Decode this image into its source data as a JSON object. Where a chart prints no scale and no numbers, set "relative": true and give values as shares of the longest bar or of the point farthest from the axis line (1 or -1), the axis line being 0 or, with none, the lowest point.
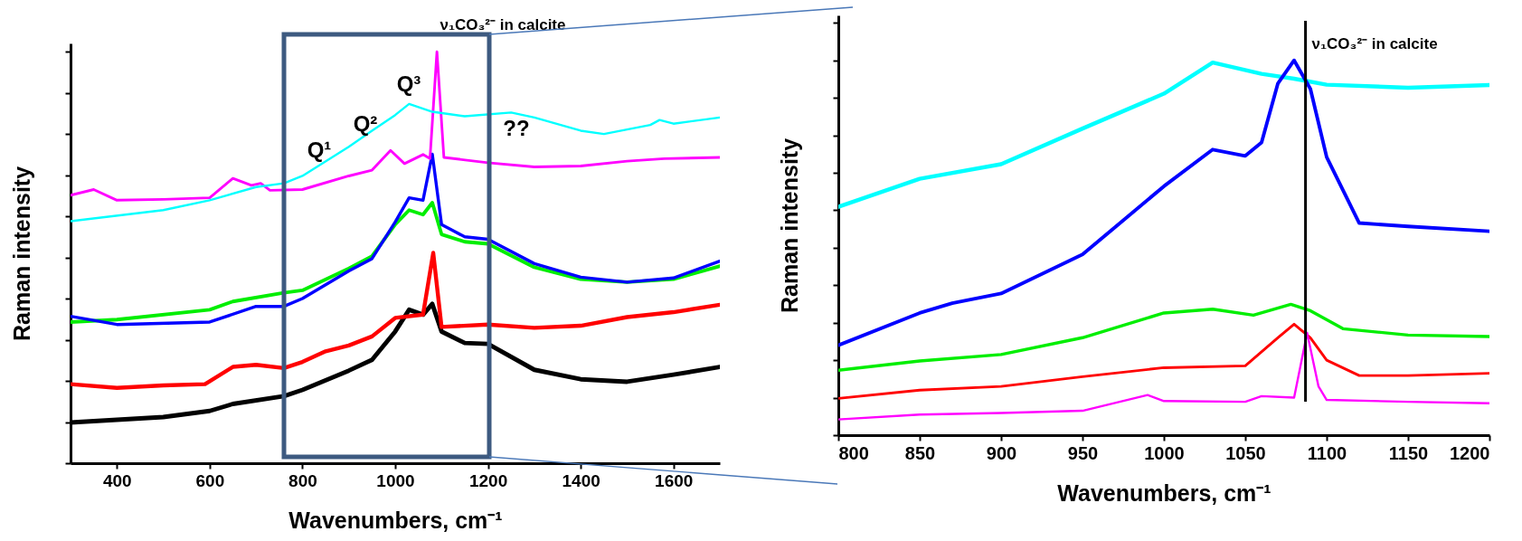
{
  "chart_data": [
    {
      "type": "line",
      "xlabel": "Wavenumbers, cm⁻¹",
      "ylabel": "Raman intensity",
      "xlim": [
        300,
        1700
      ],
      "xticks": [
        400,
        600,
        800,
        {
          "value": 1000,
          "label": "1000"
        },
        {
          "value": 1200,
          "label": "1200"
        },
        {
          "value": 1400,
          "label": "1400"
        },
        {
          "value": 1600,
          "label": "1600"
        }
      ],
      "relative": true,
      "series": [
        {
          "color": "#000000",
          "x": [
            300,
            500,
            600,
            650,
            760,
            800,
            900,
            950,
            1000,
            1030,
            1060,
            1080,
            1100,
            1150,
            1200,
            1300,
            1400,
            1500,
            1600,
            1700
          ],
          "values": [
            0.099,
            0.112,
            0.127,
            0.144,
            0.163,
            0.178,
            0.225,
            0.251,
            0.32,
            0.373,
            0.361,
            0.387,
            0.32,
            0.292,
            0.29,
            0.227,
            0.204,
            0.198,
            0.215,
            0.234
          ]
        },
        {
          "color": "#ff0000",
          "x": [
            300,
            400,
            500,
            590,
            650,
            700,
            760,
            800,
            850,
            900,
            950,
            1000,
            1060,
            1082,
            1100,
            1200,
            1300,
            1400,
            1500,
            1600,
            1700
          ],
          "values": [
            0.192,
            0.183,
            0.189,
            0.192,
            0.234,
            0.239,
            0.231,
            0.246,
            0.272,
            0.286,
            0.308,
            0.353,
            0.361,
            0.511,
            0.331,
            0.337,
            0.329,
            0.334,
            0.355,
            0.367,
            0.385
          ]
        },
        {
          "color": "#00ee00",
          "x": [
            300,
            400,
            600,
            650,
            760,
            800,
            900,
            950,
            1000,
            1030,
            1060,
            1080,
            1100,
            1150,
            1200,
            1300,
            1400,
            1500,
            1600,
            1700
          ],
          "values": [
            0.343,
            0.349,
            0.373,
            0.393,
            0.414,
            0.42,
            0.473,
            0.503,
            0.58,
            0.615,
            0.604,
            0.633,
            0.556,
            0.538,
            0.533,
            0.476,
            0.447,
            0.44,
            0.447,
            0.479
          ]
        },
        {
          "color": "#0000ff",
          "x": [
            300,
            400,
            600,
            700,
            760,
            800,
            900,
            950,
            1000,
            1030,
            1060,
            1080,
            1100,
            1150,
            1200,
            1300,
            1400,
            1500,
            1600,
            1700
          ],
          "values": [
            0.357,
            0.337,
            0.343,
            0.381,
            0.381,
            0.4,
            0.467,
            0.497,
            0.586,
            0.645,
            0.639,
            0.751,
            0.58,
            0.55,
            0.544,
            0.485,
            0.452,
            0.44,
            0.45,
            0.491
          ]
        },
        {
          "color": "#ff00ff",
          "x": [
            300,
            350,
            400,
            500,
            600,
            650,
            690,
            710,
            730,
            800,
            900,
            950,
            990,
            1020,
            1060,
            1075,
            1090,
            1105,
            1200,
            1300,
            1400,
            1500,
            1580,
            1700
          ],
          "values": [
            0.651,
            0.665,
            0.639,
            0.641,
            0.645,
            0.692,
            0.675,
            0.68,
            0.663,
            0.665,
            0.698,
            0.712,
            0.76,
            0.728,
            0.75,
            0.74,
            1.0,
            0.743,
            0.73,
            0.72,
            0.722,
            0.734,
            0.74,
            0.743
          ]
        },
        {
          "color": "#00ffff",
          "x": [
            300,
            500,
            600,
            700,
            760,
            800,
            900,
            950,
            1000,
            1030,
            1080,
            1150,
            1250,
            1300,
            1400,
            1450,
            1550,
            1570,
            1600,
            1700
          ],
          "values": [
            0.588,
            0.615,
            0.639,
            0.671,
            0.68,
            0.698,
            0.769,
            0.808,
            0.846,
            0.873,
            0.854,
            0.843,
            0.852,
            0.84,
            0.808,
            0.8,
            0.822,
            0.834,
            0.825,
            0.84
          ]
        }
      ],
      "annotations": [
        "Q¹",
        "Q²",
        "Q³",
        "??",
        "ν₁CO₃²⁻ in calcite"
      ]
    },
    {
      "type": "line",
      "xlabel": "Wavenumbers, cm⁻¹",
      "ylabel": "Raman intensity",
      "xlim": [
        800,
        1200
      ],
      "xticks": [
        800,
        850,
        900,
        950,
        {
          "value": 1000,
          "label": "1000"
        },
        {
          "value": 1050,
          "label": "1050"
        },
        {
          "value": 1100,
          "label": "1100"
        },
        {
          "value": 1150,
          "label": "1150"
        },
        {
          "value": 1200,
          "label": "1200"
        }
      ],
      "relative": true,
      "series": [
        {
          "color": "#00ffff",
          "x": [
            800,
            850,
            900,
            950,
            1000,
            1030,
            1060,
            1080,
            1100,
            1150,
            1200
          ],
          "values": [
            0.609,
            0.684,
            0.723,
            0.818,
            0.911,
            0.994,
            0.964,
            0.951,
            0.935,
            0.927,
            0.934
          ]
        },
        {
          "color": "#0000ff",
          "x": [
            800,
            850,
            870,
            900,
            950,
            1000,
            1030,
            1050,
            1060,
            1070,
            1080,
            1090,
            1100,
            1120,
            1150,
            1200
          ],
          "values": [
            0.24,
            0.326,
            0.352,
            0.378,
            0.482,
            0.664,
            0.762,
            0.745,
            0.781,
            0.938,
            1.0,
            0.924,
            0.742,
            0.566,
            0.557,
            0.544
          ]
        },
        {
          "color": "#00ee00",
          "x": [
            800,
            850,
            900,
            950,
            1000,
            1030,
            1055,
            1078,
            1090,
            1110,
            1150,
            1200
          ],
          "values": [
            0.173,
            0.198,
            0.215,
            0.26,
            0.326,
            0.336,
            0.32,
            0.349,
            0.332,
            0.284,
            0.267,
            0.263
          ]
        },
        {
          "color": "#ff0000",
          "x": [
            800,
            850,
            900,
            950,
            1000,
            1050,
            1070,
            1080,
            1090,
            1100,
            1120,
            1150,
            1200
          ],
          "values": [
            0.098,
            0.12,
            0.13,
            0.156,
            0.18,
            0.185,
            0.26,
            0.296,
            0.26,
            0.2,
            0.159,
            0.159,
            0.165
          ]
        },
        {
          "color": "#ff00ff",
          "x": [
            800,
            850,
            900,
            950,
            990,
            1000,
            1050,
            1060,
            1080,
            1088,
            1095,
            1100,
            1150,
            1200
          ],
          "values": [
            0.042,
            0.055,
            0.059,
            0.065,
            0.107,
            0.091,
            0.089,
            0.104,
            0.1,
            0.273,
            0.13,
            0.094,
            0.089,
            0.085
          ]
        }
      ],
      "ref_lines": [
        {
          "axis": "x",
          "value": 1087,
          "label": "ν₁CO₃²⁻ in calcite",
          "color": "#000000"
        }
      ]
    }
  ]
}
